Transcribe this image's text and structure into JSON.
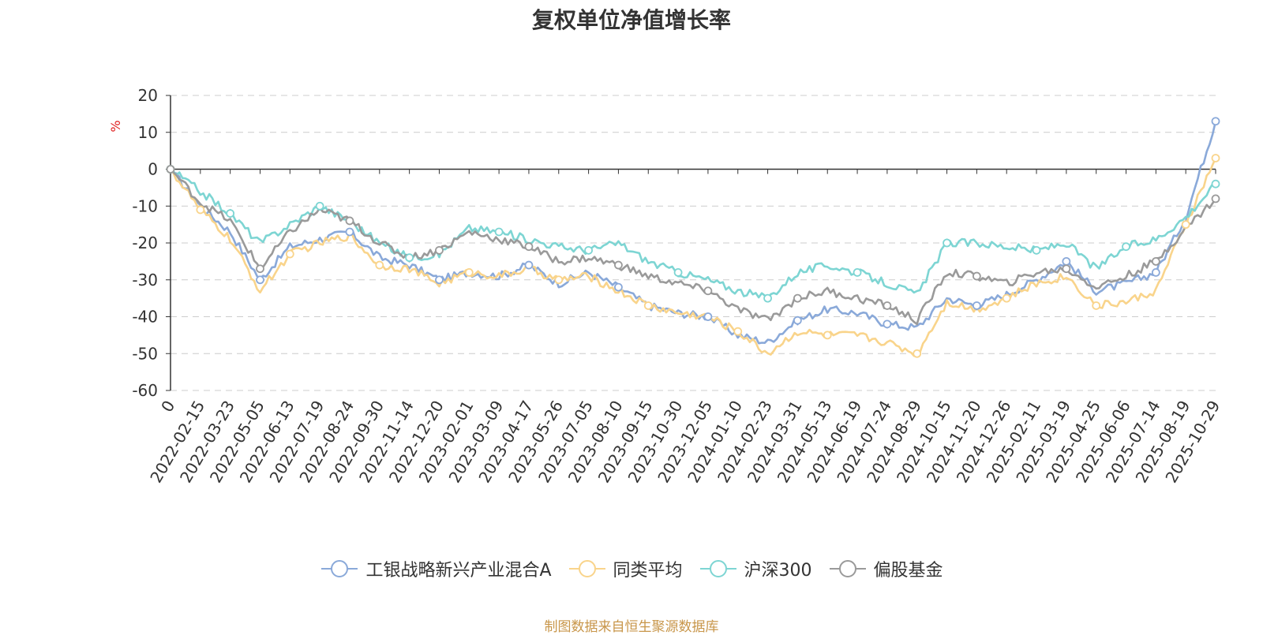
{
  "chart_data": {
    "type": "line",
    "title": "复权单位净值增长率",
    "ylabel": "%",
    "ylim": [
      -60,
      20
    ],
    "yticks": [
      20,
      10,
      0,
      -10,
      -20,
      -30,
      -40,
      -50,
      -60
    ],
    "grid": true,
    "legend_position": "bottom",
    "x": [
      "0",
      "2022-02-15",
      "2022-03-23",
      "2022-05-05",
      "2022-06-13",
      "2022-07-19",
      "2022-08-24",
      "2022-09-30",
      "2022-11-14",
      "2022-12-20",
      "2023-02-01",
      "2023-03-09",
      "2023-04-17",
      "2023-05-26",
      "2023-07-05",
      "2023-08-10",
      "2023-09-15",
      "2023-10-30",
      "2023-12-05",
      "2024-01-10",
      "2024-02-23",
      "2024-03-31",
      "2024-05-13",
      "2024-06-19",
      "2024-07-24",
      "2024-08-29",
      "2024-10-15",
      "2024-11-20",
      "2024-12-26",
      "2025-02-11",
      "2025-03-19",
      "2025-04-25",
      "2025-06-06",
      "2025-07-14",
      "2025-08-19",
      "2025-10-29"
    ],
    "series": [
      {
        "name": "工银战略新兴产业混合A",
        "color": "#8aa9d9",
        "values": [
          0,
          -10,
          -17,
          -30,
          -21,
          -19,
          -17,
          -24,
          -26,
          -30,
          -28,
          -29,
          -26,
          -31,
          -28,
          -32,
          -37,
          -39,
          -40,
          -45,
          -47,
          -41,
          -38,
          -39,
          -42,
          -43,
          -35,
          -37,
          -34,
          -30,
          -25,
          -33,
          -31,
          -28,
          -13,
          13
        ]
      },
      {
        "name": "同类平均",
        "color": "#f9d48b",
        "values": [
          0,
          -11,
          -19,
          -33,
          -23,
          -20,
          -18,
          -26,
          -27,
          -31,
          -28,
          -29,
          -27,
          -30,
          -29,
          -33,
          -37,
          -39,
          -40,
          -44,
          -50,
          -44,
          -45,
          -45,
          -47,
          -50,
          -36,
          -38,
          -35,
          -31,
          -29,
          -37,
          -36,
          -33,
          -15,
          3
        ]
      },
      {
        "name": "沪深300",
        "color": "#7dd5d3",
        "values": [
          0,
          -6,
          -12,
          -20,
          -15,
          -10,
          -14,
          -20,
          -24,
          -23,
          -16,
          -17,
          -19,
          -21,
          -22,
          -20,
          -25,
          -28,
          -30,
          -33,
          -35,
          -28,
          -26,
          -28,
          -31,
          -34,
          -20,
          -20,
          -21,
          -22,
          -20,
          -27,
          -21,
          -19,
          -13,
          -4
        ]
      },
      {
        "name": "偏股基金",
        "color": "#9a9a9a",
        "values": [
          0,
          -9,
          -14,
          -27,
          -17,
          -11,
          -14,
          -20,
          -24,
          -22,
          -17,
          -19,
          -21,
          -25,
          -24,
          -26,
          -29,
          -31,
          -33,
          -38,
          -41,
          -35,
          -33,
          -35,
          -37,
          -41,
          -28,
          -29,
          -31,
          -28,
          -27,
          -32,
          -29,
          -25,
          -16,
          -8
        ]
      }
    ]
  },
  "legend": {
    "items": [
      "工银战略新兴产业混合A",
      "同类平均",
      "沪深300",
      "偏股基金"
    ]
  },
  "source_note": "制图数据来自恒生聚源数据库",
  "axis_label_color": "#e02020"
}
